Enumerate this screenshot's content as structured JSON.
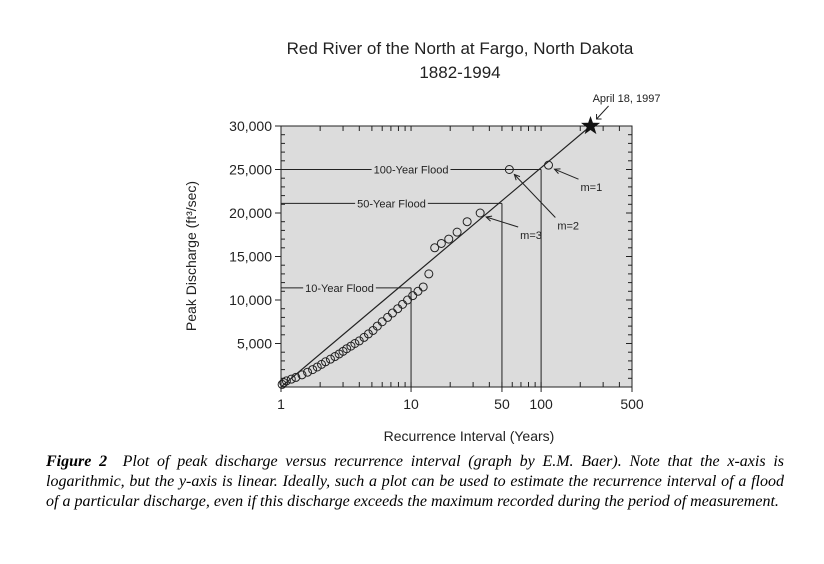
{
  "chart_data": {
    "type": "scatter",
    "title": "Red River of the North at Fargo, North Dakota",
    "subtitle": "1882-1994",
    "xlabel": "Recurrence Interval (Years)",
    "ylabel": "Peak Discharge (ft³/sec)",
    "x_scale": "log",
    "xlim": [
      1,
      500
    ],
    "ylim": [
      0,
      30000
    ],
    "x_ticks": [
      1,
      10,
      50,
      100,
      500
    ],
    "x_tick_labels": [
      "1",
      "10",
      "50",
      "100",
      "500"
    ],
    "y_ticks": [
      5000,
      10000,
      15000,
      20000,
      25000,
      30000
    ],
    "y_tick_labels": [
      "5,000",
      "10,000",
      "15,000",
      "20,000",
      "25,000",
      "30,000"
    ],
    "grid": false,
    "background": "#dcdcdc",
    "series": [
      {
        "marker": "open-circle",
        "x": [
          1.02,
          1.05,
          1.1,
          1.2,
          1.3,
          1.45,
          1.6,
          1.75,
          1.9,
          2.05,
          2.2,
          2.4,
          2.6,
          2.8,
          3.0,
          3.2,
          3.45,
          3.7,
          4.0,
          4.35,
          4.7,
          5.1,
          5.5,
          6.0,
          6.6,
          7.2,
          7.9,
          8.6,
          9.4,
          10.3,
          11.3,
          12.4,
          13.7,
          15.2,
          17.1,
          19.5,
          22.6,
          27,
          34,
          57,
          114
        ],
        "y": [
          300,
          500,
          700,
          900,
          1100,
          1400,
          1700,
          2000,
          2300,
          2600,
          2900,
          3200,
          3500,
          3800,
          4100,
          4400,
          4700,
          5000,
          5300,
          5700,
          6100,
          6500,
          7000,
          7500,
          8000,
          8500,
          9000,
          9500,
          10000,
          10500,
          11000,
          11500,
          13000,
          16000,
          16500,
          17000,
          17800,
          19000,
          20000,
          25000,
          25500
        ]
      }
    ],
    "trend_line": {
      "x": [
        1,
        240
      ],
      "y": [
        0,
        30000
      ]
    },
    "record_event": {
      "label": "April 18, 1997",
      "x": 240,
      "y": 30000,
      "marker": "star"
    },
    "floods": [
      {
        "label": "10-Year Flood",
        "x": 10,
        "y": 11400
      },
      {
        "label": "50-Year Flood",
        "x": 50,
        "y": 21100
      },
      {
        "label": "100-Year Flood",
        "x": 100,
        "y": 25000
      }
    ],
    "annotations": [
      {
        "label": "m=1",
        "x": 114,
        "y": 25500
      },
      {
        "label": "m=2",
        "x": 57,
        "y": 25000
      },
      {
        "label": "m=3",
        "x": 34,
        "y": 20000
      }
    ]
  },
  "caption": {
    "label": "Figure 2",
    "text": "Plot of peak discharge versus recurrence interval (graph by E.M. Baer).  Note that the x-axis is logarithmic, but the y-axis is linear.  Ideally, such a plot can be used to estimate the recurrence interval of a flood of a particular discharge, even if this discharge exceeds the maximum recorded during the period of measurement."
  }
}
